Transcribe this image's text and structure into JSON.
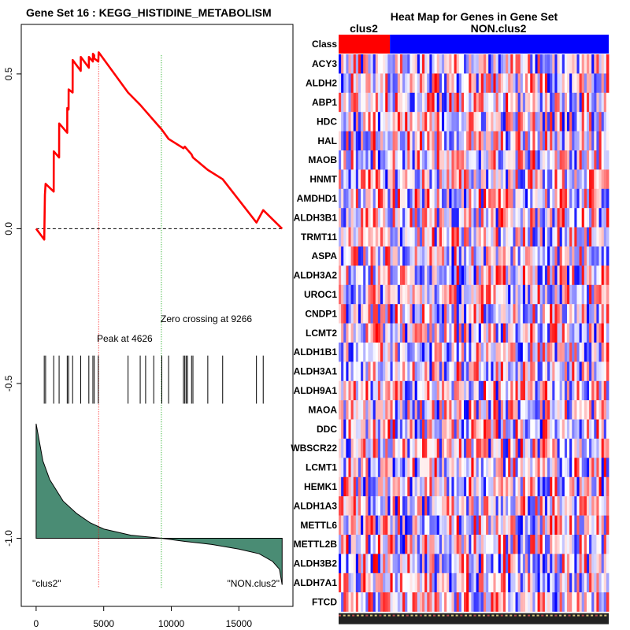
{
  "chart_data": [
    {
      "type": "line",
      "title": "Gene Set  16 : KEGG_HISTIDINE_METABOLISM",
      "xlabel": "",
      "ylabel": "",
      "xlim": [
        -1100,
        19000
      ],
      "ylim": [
        -1.22,
        0.66
      ],
      "x_ticks": [
        0,
        5000,
        10000,
        15000
      ],
      "x_tick_labels": [
        "0",
        "5000",
        "10000",
        "15000"
      ],
      "y_ticks": [
        0.5,
        0.0,
        -0.5,
        -1.0
      ],
      "y_tick_labels": [
        "0.5",
        "0.0",
        "-0.5",
        "-1.0"
      ],
      "n_genes": 18200,
      "peak": {
        "x": 4626,
        "label": "Peak at 4626"
      },
      "zero_crossing": {
        "x": 9266,
        "label": "Zero crossing at 9266"
      },
      "hits": [
        600,
        700,
        1300,
        1700,
        2300,
        2400,
        2700,
        3300,
        3900,
        4200,
        4300,
        4600,
        6800,
        7700,
        8100,
        8700,
        9300,
        9800,
        10900,
        11000,
        11100,
        11200,
        11500,
        11600,
        12700,
        13800,
        16300,
        16800
      ],
      "series": [
        {
          "name": "running enrichment score",
          "color": "#ff0000",
          "x": [
            0,
            600,
            650,
            700,
            1300,
            1305,
            1700,
            1705,
            2300,
            2305,
            2400,
            2405,
            2700,
            2705,
            3300,
            3305,
            3900,
            3905,
            4200,
            4205,
            4300,
            4305,
            4600,
            4626,
            6800,
            7700,
            8100,
            8700,
            9300,
            9800,
            10900,
            11000,
            11100,
            11200,
            11500,
            11600,
            12700,
            13800,
            16300,
            16800,
            18200
          ],
          "y": [
            0.0,
            -0.035,
            0.11,
            0.145,
            0.12,
            0.25,
            0.23,
            0.34,
            0.31,
            0.39,
            0.385,
            0.45,
            0.44,
            0.545,
            0.51,
            0.555,
            0.52,
            0.555,
            0.54,
            0.565,
            0.56,
            0.55,
            0.54,
            0.57,
            0.44,
            0.4,
            0.38,
            0.35,
            0.32,
            0.29,
            0.26,
            0.265,
            0.26,
            0.255,
            0.24,
            0.23,
            0.19,
            0.16,
            0.02,
            0.06,
            0.0
          ]
        },
        {
          "name": "ranked list metric",
          "color": "#4a8c74",
          "start": -0.63,
          "end": -1.15,
          "baseline": -1.0,
          "x": [
            0,
            500,
            1000,
            2000,
            3000,
            4000,
            5000,
            7000,
            9266,
            11000,
            13000,
            15000,
            16500,
            17500,
            18000,
            18200
          ],
          "y": [
            -0.63,
            -0.75,
            -0.81,
            -0.88,
            -0.92,
            -0.95,
            -0.97,
            -0.99,
            -1.0,
            -1.01,
            -1.02,
            -1.035,
            -1.05,
            -1.075,
            -1.1,
            -1.15
          ]
        }
      ],
      "annotations": [
        "\"clus2\"",
        "\"NON.clus2\""
      ]
    },
    {
      "type": "heatmap",
      "title": "Heat Map for Genes in Gene Set",
      "class_label": "Class",
      "groups": [
        {
          "name": "clus2",
          "color": "#ff0000",
          "fraction": 0.19
        },
        {
          "name": "NON.clus2",
          "color": "#0000ff",
          "fraction": 0.81
        }
      ],
      "rows": [
        "ACY3",
        "ALDH2",
        "ABP1",
        "HDC",
        "HAL",
        "MAOB",
        "HNMT",
        "AMDHD1",
        "ALDH3B1",
        "TRMT11",
        "ASPA",
        "ALDH3A2",
        "UROC1",
        "CNDP1",
        "LCMT2",
        "ALDH1B1",
        "ALDH3A1",
        "ALDH9A1",
        "MAOA",
        "DDC",
        "WBSCR22",
        "LCMT1",
        "HEMK1",
        "ALDH1A3",
        "METTL6",
        "METTL2B",
        "ALDH3B2",
        "ALDH7A1",
        "FTCD"
      ],
      "n_columns": 110,
      "color_scale": [
        "#0000ff",
        "#ffffff",
        "#ff0000"
      ]
    }
  ]
}
